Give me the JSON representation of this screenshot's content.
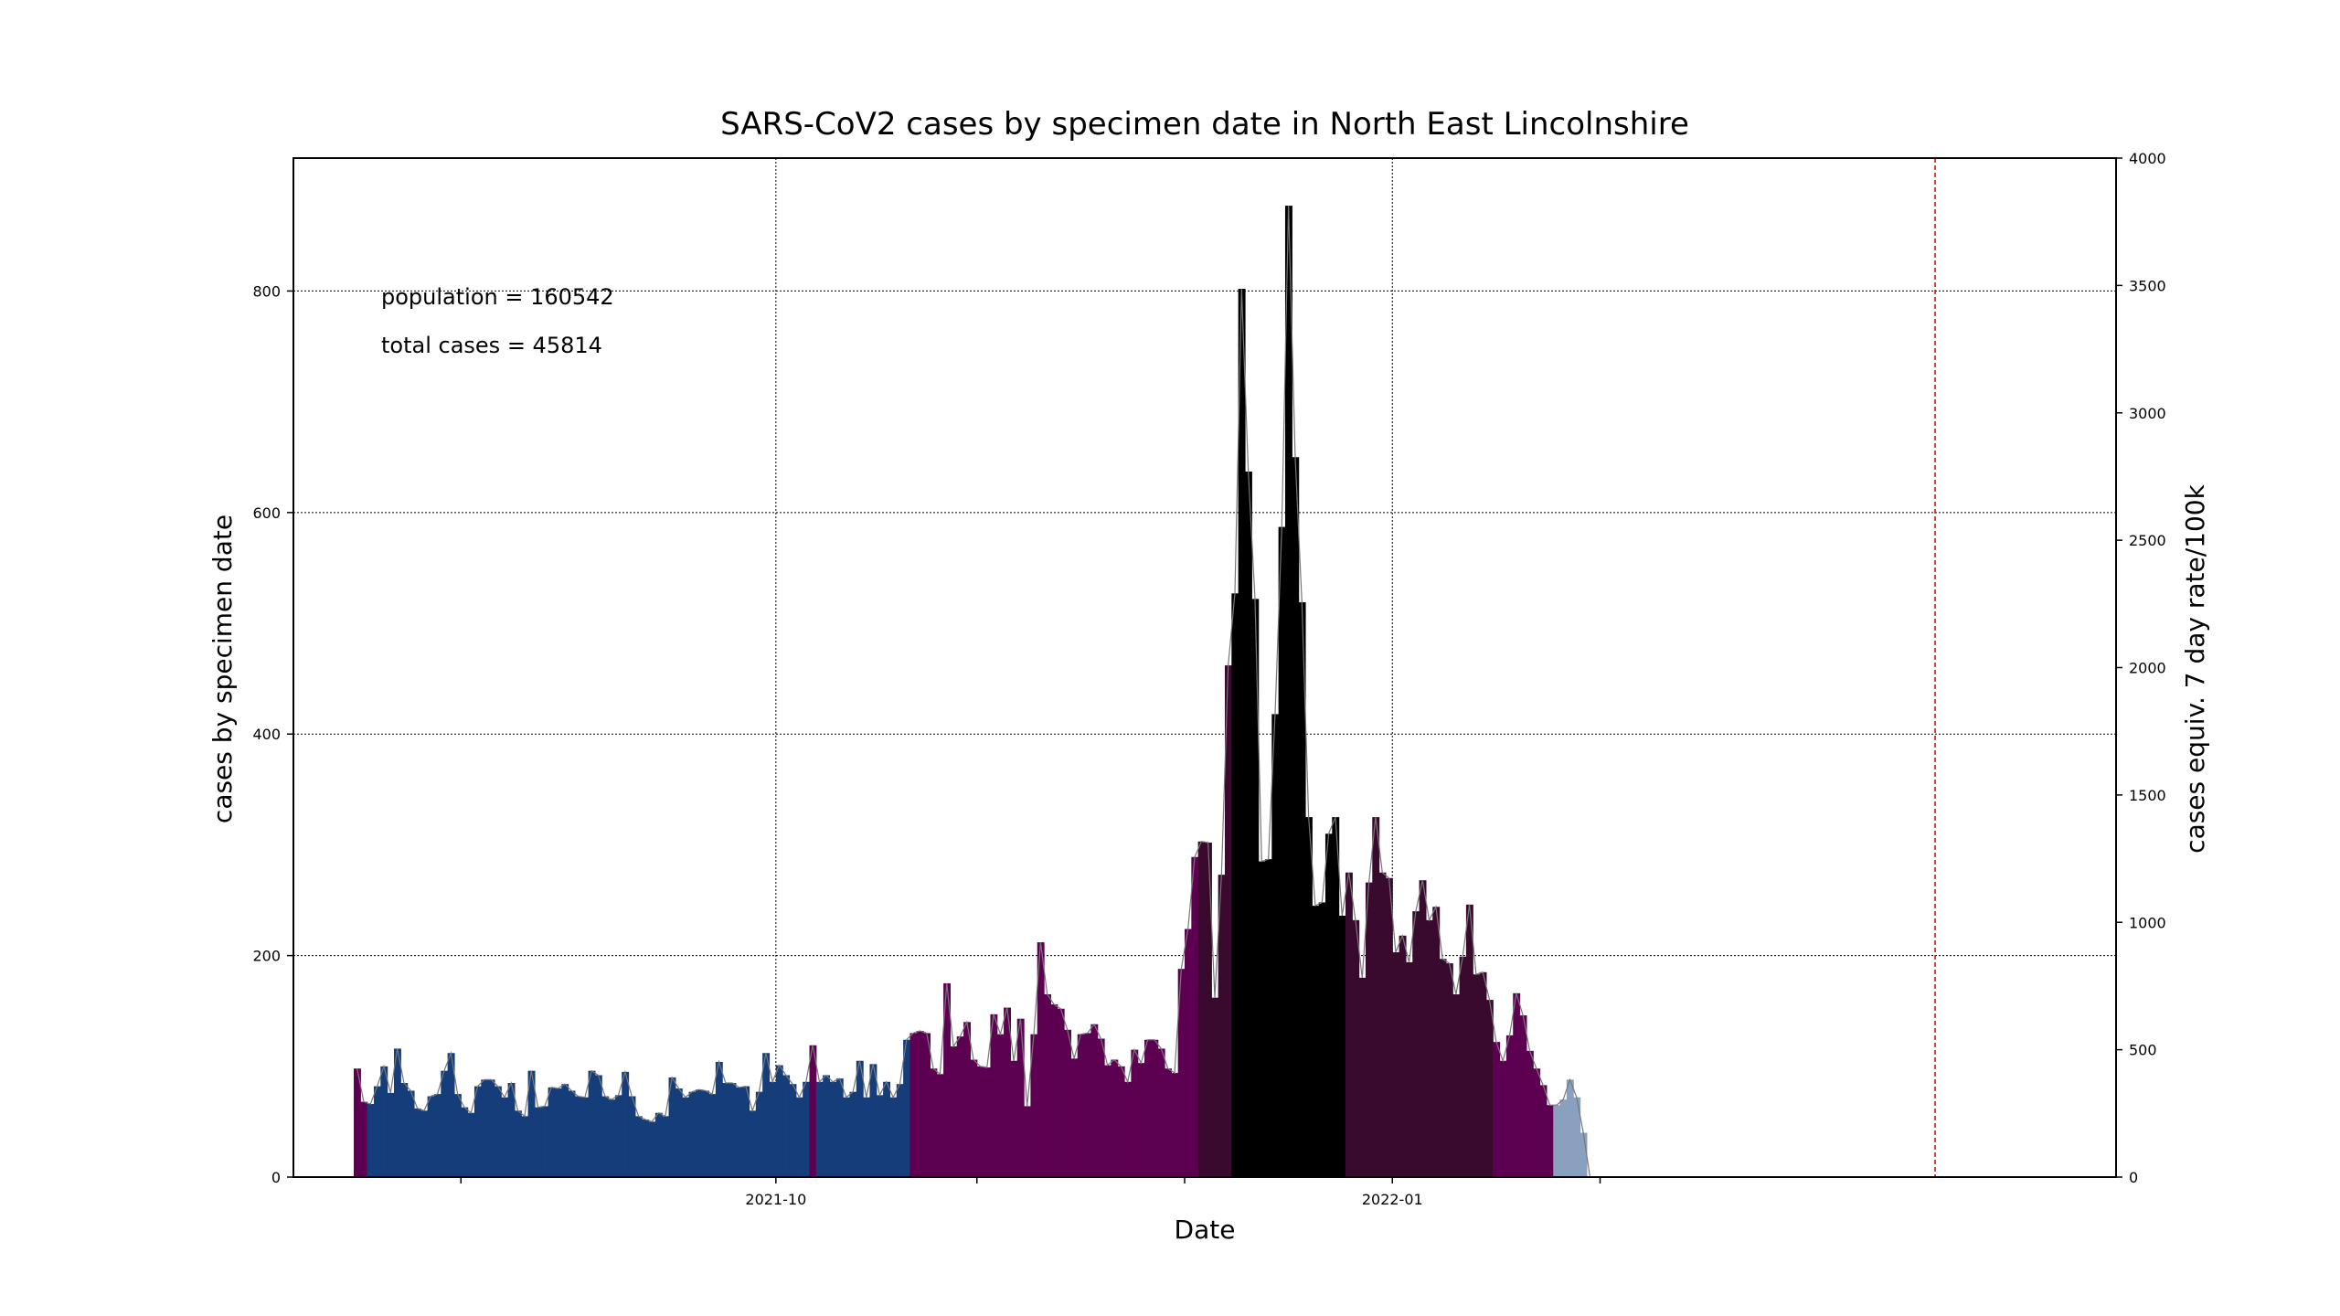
{
  "chart_data": {
    "type": "bar",
    "title": "SARS-CoV2 cases by specimen date in North East Lincolnshire",
    "xlabel": "Date",
    "ylabel": "cases by specimen date",
    "ylabel_right": "cases equiv. 7 day rate/100k",
    "ylim": [
      0,
      920
    ],
    "ylim_right": [
      0,
      4000
    ],
    "yticks": [
      0,
      200,
      400,
      600,
      800
    ],
    "yticks_right": [
      0,
      500,
      1000,
      1500,
      2000,
      2500,
      3000,
      3500,
      4000
    ],
    "x_range": [
      "2021-07-21",
      "2022-04-19"
    ],
    "x_tick_labels": [
      {
        "date": "2021-10-01",
        "label": "2021-10"
      },
      {
        "date": "2022-01-01",
        "label": "2022-01"
      }
    ],
    "x_minor_ticks": [
      "2021-08-15",
      "2021-10-31",
      "2021-12-01",
      "2022-02-01"
    ],
    "grid": true,
    "annotations": [
      "population = 160542",
      "total cases = 45814"
    ],
    "cutoff_date": "2022-03-23",
    "colors": {
      "low": "#143d7a",
      "moderate": "#5d0052",
      "high": "#3a0a2e",
      "very_high": "#000000",
      "provisional": "#8aa0bf",
      "rate_line": "#777777",
      "cutoff_line": "#dd0000",
      "grid": "#000000"
    },
    "series": [
      {
        "start_date": "2021-07-30",
        "values": [
          98,
          68,
          66,
          82,
          100,
          76,
          116,
          85,
          78,
          62,
          60,
          73,
          75,
          96,
          112,
          75,
          63,
          58,
          82,
          88,
          88,
          82,
          72,
          85,
          60,
          55,
          96,
          63,
          64,
          81,
          80,
          84,
          78,
          73,
          72,
          96,
          92,
          73,
          70,
          74,
          95,
          73,
          55,
          52,
          50,
          58,
          55,
          90,
          80,
          72,
          77,
          79,
          78,
          75,
          104,
          85,
          85,
          81,
          82,
          60,
          77,
          112,
          86,
          101,
          92,
          84,
          72,
          86,
          119,
          86,
          92,
          86,
          89,
          72,
          77,
          105,
          72,
          102,
          74,
          86,
          72,
          84,
          124,
          130,
          132,
          130,
          98,
          93,
          175,
          118,
          127,
          140,
          106,
          100,
          99,
          147,
          129,
          153,
          105,
          143,
          64,
          129,
          212,
          165,
          156,
          152,
          133,
          107,
          129,
          130,
          138,
          125,
          101,
          106,
          100,
          86,
          115,
          103,
          124,
          124,
          116,
          98,
          94,
          188,
          224,
          289,
          303,
          302,
          162,
          273,
          462,
          527,
          802,
          637,
          522,
          285,
          287,
          418,
          587,
          877,
          650,
          519,
          325,
          245,
          248,
          310,
          325,
          236,
          275,
          232,
          180,
          266,
          325,
          275,
          270,
          203,
          218,
          194,
          240,
          268,
          232,
          244,
          197,
          193,
          165,
          199,
          246,
          183,
          185,
          160,
          122,
          105,
          128,
          166,
          146,
          114,
          98,
          83,
          65,
          65,
          70,
          88,
          72,
          40,
          0
        ],
        "categories": [
          "moderate",
          "moderate",
          "low",
          "low",
          "low",
          "low",
          "low",
          "low",
          "low",
          "low",
          "low",
          "low",
          "low",
          "low",
          "low",
          "low",
          "low",
          "low",
          "low",
          "low",
          "low",
          "low",
          "low",
          "low",
          "low",
          "low",
          "low",
          "low",
          "low",
          "low",
          "low",
          "low",
          "low",
          "low",
          "low",
          "low",
          "low",
          "low",
          "low",
          "low",
          "low",
          "low",
          "low",
          "low",
          "low",
          "low",
          "low",
          "low",
          "low",
          "low",
          "low",
          "low",
          "low",
          "low",
          "low",
          "low",
          "low",
          "low",
          "low",
          "low",
          "low",
          "low",
          "low",
          "low",
          "low",
          "low",
          "low",
          "low",
          "moderate",
          "low",
          "low",
          "low",
          "low",
          "low",
          "low",
          "low",
          "low",
          "low",
          "low",
          "low",
          "low",
          "low",
          "low",
          "moderate",
          "moderate",
          "moderate",
          "moderate",
          "moderate",
          "moderate",
          "moderate",
          "moderate",
          "moderate",
          "moderate",
          "moderate",
          "moderate",
          "moderate",
          "moderate",
          "moderate",
          "moderate",
          "moderate",
          "moderate",
          "moderate",
          "moderate",
          "moderate",
          "moderate",
          "moderate",
          "moderate",
          "moderate",
          "moderate",
          "moderate",
          "moderate",
          "moderate",
          "moderate",
          "moderate",
          "moderate",
          "moderate",
          "moderate",
          "moderate",
          "moderate",
          "moderate",
          "moderate",
          "moderate",
          "moderate",
          "moderate",
          "moderate",
          "moderate",
          "high",
          "high",
          "high",
          "high",
          "high",
          "very_high",
          "very_high",
          "very_high",
          "very_high",
          "very_high",
          "very_high",
          "very_high",
          "very_high",
          "very_high",
          "very_high",
          "very_high",
          "very_high",
          "very_high",
          "very_high",
          "very_high",
          "very_high",
          "very_high",
          "high",
          "high",
          "high",
          "high",
          "high",
          "high",
          "high",
          "high",
          "high",
          "high",
          "high",
          "high",
          "high",
          "high",
          "high",
          "high",
          "high",
          "high",
          "high",
          "high",
          "high",
          "high",
          "moderate",
          "moderate",
          "moderate",
          "moderate",
          "moderate",
          "moderate",
          "moderate",
          "moderate",
          "moderate",
          "provisional",
          "provisional",
          "provisional",
          "provisional",
          "provisional",
          "provisional"
        ]
      }
    ]
  }
}
